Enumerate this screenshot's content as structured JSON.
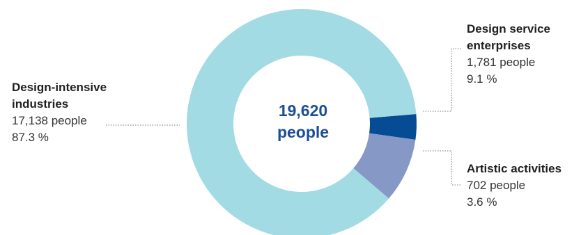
{
  "chart_data": {
    "type": "pie",
    "style": "donut",
    "center_label": {
      "line1": "19,620",
      "line2": "people"
    },
    "slices": [
      {
        "name_lines": [
          "Design-intensive",
          "industries"
        ],
        "people_label": "17,138 people",
        "percent_label": "87.3 %",
        "value": 17138,
        "percent": 87.3,
        "color": "#a3dbe5"
      },
      {
        "name_lines": [
          "Design service",
          "enterprises"
        ],
        "people_label": "1,781 people",
        "percent_label": "9.1 %",
        "value": 1781,
        "percent": 9.1,
        "color": "#8698c6"
      },
      {
        "name_lines": [
          "Artistic activities"
        ],
        "people_label": "702 people",
        "percent_label": "3.6 %",
        "value": 702,
        "percent": 3.6,
        "color": "#064c94"
      }
    ]
  },
  "colors": {
    "center_text": "#1a4f96",
    "leader": "#777777"
  }
}
